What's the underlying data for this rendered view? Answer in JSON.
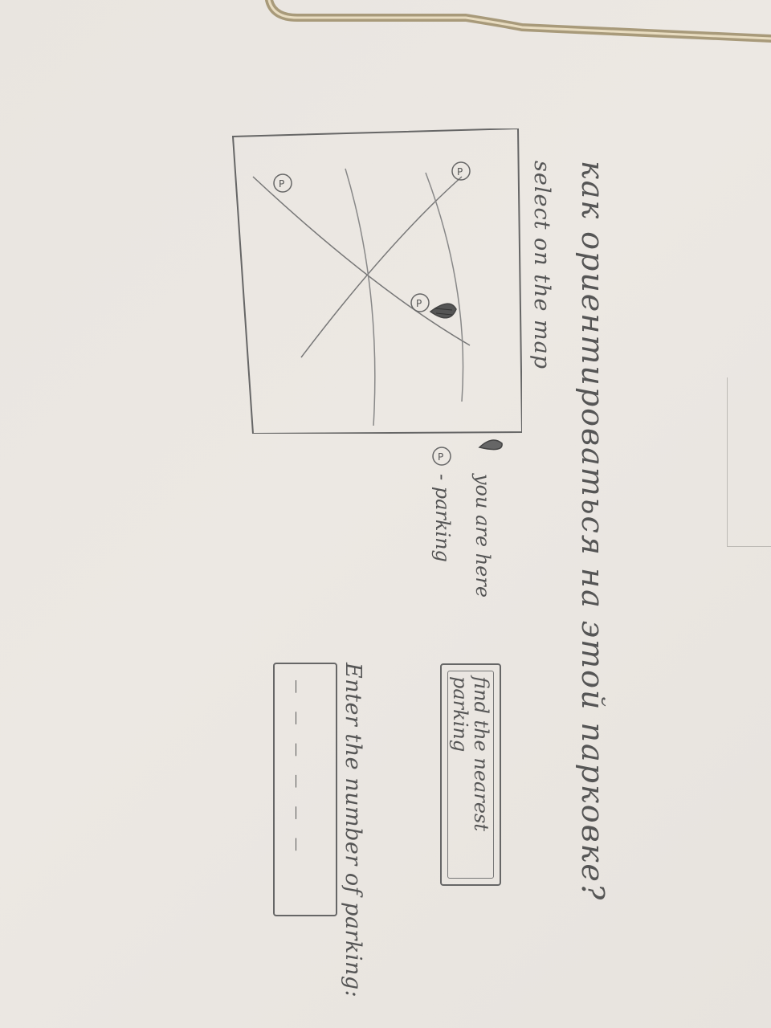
{
  "header": {
    "title": "как ориентироваться на этой парковке?",
    "subtitle": "select on the map"
  },
  "legend": {
    "you_are_here": "you are here",
    "parking": "- parking",
    "parking_marker": "P"
  },
  "map": {
    "parking_markers": [
      "P",
      "P",
      "P"
    ],
    "you_are_here_icon": "location-pin-icon"
  },
  "actions": {
    "find_nearest_label": "find the nearest parking"
  },
  "parking_number": {
    "label": "Enter the number of parking:",
    "placeholder": "_ _ _ _ _ _"
  }
}
